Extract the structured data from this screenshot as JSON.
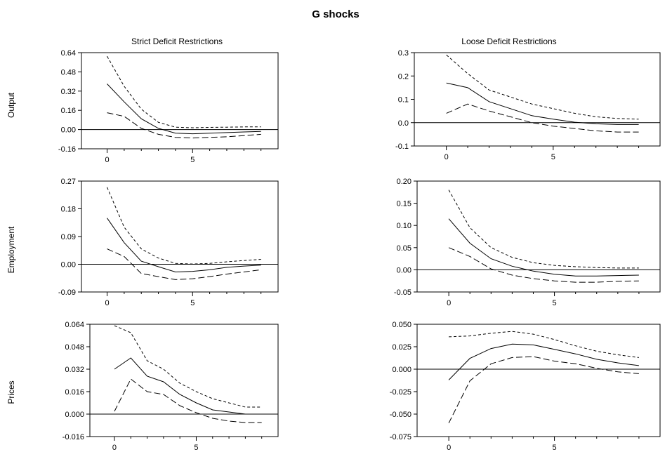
{
  "title": "G shocks",
  "column_titles": [
    "Strict Deficit Restrictions",
    "Loose Deficit Restrictions"
  ],
  "row_labels": [
    "Output",
    "Employment",
    "Prices"
  ],
  "chart_data": [
    {
      "type": "line",
      "title": "Strict Deficit Restrictions",
      "ylabel": "Output",
      "x": [
        0,
        1,
        2,
        3,
        4,
        5,
        6,
        7,
        8,
        9
      ],
      "xticks": [
        0,
        5
      ],
      "yticks": [
        "0.64",
        "0.48",
        "0.32",
        "0.16",
        "0.00",
        "-0.16"
      ],
      "ylim": [
        -0.16,
        0.64
      ],
      "xlim": [
        -1.5,
        10
      ],
      "zero_line": true,
      "series": [
        {
          "style": "solid",
          "values": [
            0.38,
            0.23,
            0.09,
            0.01,
            -0.03,
            -0.035,
            -0.03,
            -0.025,
            -0.02,
            -0.015
          ]
        },
        {
          "style": "dashed-upper",
          "values": [
            0.61,
            0.36,
            0.17,
            0.06,
            0.02,
            0.015,
            0.018,
            0.02,
            0.022,
            0.022
          ]
        },
        {
          "style": "dashed-lower",
          "values": [
            0.14,
            0.11,
            0.01,
            -0.04,
            -0.065,
            -0.07,
            -0.065,
            -0.06,
            -0.05,
            -0.04
          ]
        }
      ]
    },
    {
      "type": "line",
      "title": "Loose Deficit Restrictions",
      "ylabel": "Output",
      "x": [
        0,
        1,
        2,
        3,
        4,
        5,
        6,
        7,
        8,
        9
      ],
      "xticks": [
        0,
        5
      ],
      "yticks": [
        "0.3",
        "0.2",
        "0.1",
        "0.0",
        "-0.1"
      ],
      "ylim": [
        -0.1,
        0.3
      ],
      "xlim": [
        -1.5,
        10
      ],
      "zero_line": true,
      "series": [
        {
          "style": "solid",
          "values": [
            0.17,
            0.15,
            0.09,
            0.06,
            0.03,
            0.015,
            0.002,
            -0.005,
            -0.008,
            -0.008
          ]
        },
        {
          "style": "dashed-upper",
          "values": [
            0.29,
            0.21,
            0.14,
            0.11,
            0.08,
            0.06,
            0.04,
            0.025,
            0.018,
            0.015
          ]
        },
        {
          "style": "dashed-lower",
          "values": [
            0.04,
            0.08,
            0.05,
            0.025,
            0.0,
            -0.015,
            -0.025,
            -0.035,
            -0.04,
            -0.04
          ]
        }
      ]
    },
    {
      "type": "line",
      "title": "",
      "ylabel": "Employment",
      "x": [
        0,
        1,
        2,
        3,
        4,
        5,
        6,
        7,
        8,
        9
      ],
      "xticks": [
        0,
        5
      ],
      "yticks": [
        "0.27",
        "0.18",
        "0.09",
        "0.00",
        "-0.09"
      ],
      "ylim": [
        -0.09,
        0.27
      ],
      "xlim": [
        -1.5,
        10
      ],
      "zero_line": true,
      "series": [
        {
          "style": "solid",
          "values": [
            0.15,
            0.07,
            0.01,
            -0.008,
            -0.025,
            -0.023,
            -0.018,
            -0.01,
            -0.006,
            -0.003
          ]
        },
        {
          "style": "dashed-upper",
          "values": [
            0.25,
            0.12,
            0.05,
            0.02,
            0.003,
            0.001,
            0.003,
            0.008,
            0.012,
            0.016
          ]
        },
        {
          "style": "dashed-lower",
          "values": [
            0.05,
            0.025,
            -0.03,
            -0.04,
            -0.05,
            -0.047,
            -0.04,
            -0.032,
            -0.025,
            -0.018
          ]
        }
      ]
    },
    {
      "type": "line",
      "title": "",
      "ylabel": "Employment",
      "x": [
        0,
        1,
        2,
        3,
        4,
        5,
        6,
        7,
        8,
        9
      ],
      "xticks": [
        0,
        5
      ],
      "yticks": [
        "0.20",
        "0.15",
        "0.10",
        "0.05",
        "0.00",
        "-0.05"
      ],
      "ylim": [
        -0.05,
        0.2
      ],
      "xlim": [
        -1.5,
        10
      ],
      "zero_line": true,
      "series": [
        {
          "style": "solid",
          "values": [
            0.115,
            0.06,
            0.025,
            0.008,
            -0.003,
            -0.01,
            -0.014,
            -0.014,
            -0.013,
            -0.012
          ]
        },
        {
          "style": "dashed-upper",
          "values": [
            0.18,
            0.095,
            0.05,
            0.028,
            0.016,
            0.01,
            0.007,
            0.005,
            0.004,
            0.004
          ]
        },
        {
          "style": "dashed-lower",
          "values": [
            0.05,
            0.03,
            0.002,
            -0.012,
            -0.02,
            -0.025,
            -0.028,
            -0.028,
            -0.026,
            -0.025
          ]
        }
      ]
    },
    {
      "type": "line",
      "title": "",
      "ylabel": "Prices",
      "x": [
        0,
        1,
        2,
        3,
        4,
        5,
        6,
        7,
        8,
        9
      ],
      "xticks": [
        0,
        5
      ],
      "yticks": [
        "0.064",
        "0.048",
        "0.032",
        "0.016",
        "0.000",
        "-0.016"
      ],
      "ylim": [
        -0.016,
        0.064
      ],
      "xlim": [
        -1.5,
        10
      ],
      "zero_line": true,
      "series": [
        {
          "style": "solid",
          "values": [
            0.032,
            0.04,
            0.027,
            0.023,
            0.014,
            0.008,
            0.003,
            0.0015,
            0.0,
            0.0
          ]
        },
        {
          "style": "dashed-upper",
          "values": [
            0.063,
            0.058,
            0.038,
            0.032,
            0.022,
            0.016,
            0.011,
            0.008,
            0.005,
            0.005
          ]
        },
        {
          "style": "dashed-lower",
          "values": [
            0.002,
            0.025,
            0.016,
            0.014,
            0.006,
            0.001,
            -0.003,
            -0.005,
            -0.006,
            -0.006
          ]
        }
      ]
    },
    {
      "type": "line",
      "title": "",
      "ylabel": "Prices",
      "x": [
        0,
        1,
        2,
        3,
        4,
        5,
        6,
        7,
        8,
        9
      ],
      "xticks": [
        0,
        5
      ],
      "yticks": [
        "0.050",
        "0.025",
        "0.000",
        "-0.025",
        "-0.050",
        "-0.075"
      ],
      "ylim": [
        -0.075,
        0.05
      ],
      "xlim": [
        -1.5,
        10
      ],
      "zero_line": true,
      "series": [
        {
          "style": "solid",
          "values": [
            -0.012,
            0.012,
            0.023,
            0.028,
            0.027,
            0.022,
            0.017,
            0.011,
            0.007,
            0.004
          ]
        },
        {
          "style": "dashed-upper",
          "values": [
            0.036,
            0.037,
            0.04,
            0.042,
            0.039,
            0.033,
            0.026,
            0.02,
            0.016,
            0.013
          ]
        },
        {
          "style": "dashed-lower",
          "values": [
            -0.06,
            -0.013,
            0.006,
            0.013,
            0.014,
            0.009,
            0.006,
            0.001,
            -0.003,
            -0.005
          ]
        }
      ]
    }
  ]
}
